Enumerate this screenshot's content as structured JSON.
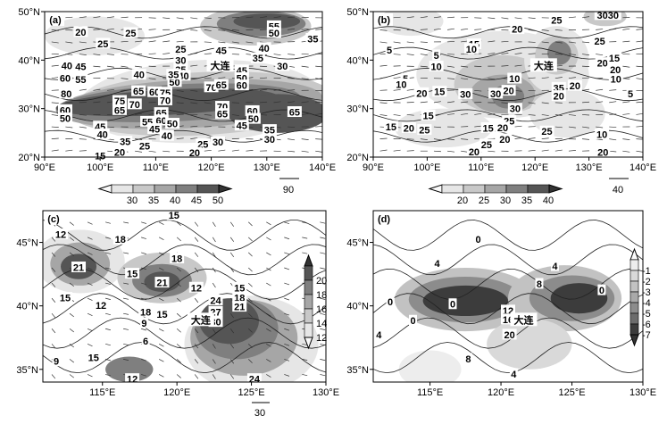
{
  "chart_data": [
    {
      "type": "heatmap",
      "panel_label": "(a)",
      "x_ticks": [
        "90°E",
        "100°E",
        "110°E",
        "120°E",
        "130°E",
        "140°E"
      ],
      "y_ticks": [
        "50°N",
        "40°N",
        "30°N",
        "20°N"
      ],
      "xlim": [
        90,
        140
      ],
      "ylim": [
        20,
        50
      ],
      "city": {
        "label": "大连",
        "lon": 121.6,
        "lat": 38.9
      },
      "shading_levels": [
        "30",
        "35",
        "40",
        "45",
        "50"
      ],
      "shading_colors": [
        "#e6e6e6",
        "#c8c8c8",
        "#a6a6a6",
        "#7f7f7f",
        "#555555"
      ],
      "vector_scale_label": "90",
      "contour_labels": [
        {
          "v": "20",
          "lon": 96.5,
          "lat": 45.7
        },
        {
          "v": "25",
          "lon": 100.5,
          "lat": 43.3
        },
        {
          "v": "25",
          "lon": 105.5,
          "lat": 45.5
        },
        {
          "v": "25",
          "lon": 114.5,
          "lat": 42.2
        },
        {
          "v": "30",
          "lon": 114.5,
          "lat": 39.9
        },
        {
          "v": "35",
          "lon": 114.5,
          "lat": 37.9
        },
        {
          "v": "40",
          "lon": 94.0,
          "lat": 38.8
        },
        {
          "v": "45",
          "lon": 96.5,
          "lat": 38.6
        },
        {
          "v": "60",
          "lon": 93.7,
          "lat": 36.2
        },
        {
          "v": "55",
          "lon": 96.5,
          "lat": 35.9
        },
        {
          "v": "80",
          "lon": 93.9,
          "lat": 33.0
        },
        {
          "v": "60",
          "lon": 93.7,
          "lat": 29.6
        },
        {
          "v": "50",
          "lon": 93.7,
          "lat": 27.9
        },
        {
          "v": "45",
          "lon": 100.0,
          "lat": 26.2
        },
        {
          "v": "40",
          "lon": 100.4,
          "lat": 24.6
        },
        {
          "v": "35",
          "lon": 104.5,
          "lat": 23.1
        },
        {
          "v": "20",
          "lon": 103.5,
          "lat": 20.9
        },
        {
          "v": "15",
          "lon": 100.0,
          "lat": 20.2
        },
        {
          "v": "25",
          "lon": 108.0,
          "lat": 22.2
        },
        {
          "v": "75",
          "lon": 103.5,
          "lat": 31.5
        },
        {
          "v": "65",
          "lon": 103.5,
          "lat": 29.6
        },
        {
          "v": "70",
          "lon": 106.2,
          "lat": 30.8
        },
        {
          "v": "65",
          "lon": 106.9,
          "lat": 33.5
        },
        {
          "v": "60",
          "lon": 109.8,
          "lat": 33.3
        },
        {
          "v": "75",
          "lon": 111.7,
          "lat": 33.2
        },
        {
          "v": "70",
          "lon": 111.7,
          "lat": 31.6
        },
        {
          "v": "65",
          "lon": 111.0,
          "lat": 29.0
        },
        {
          "v": "55",
          "lon": 108.5,
          "lat": 27.2
        },
        {
          "v": "60",
          "lon": 111.0,
          "lat": 27.5
        },
        {
          "v": "50",
          "lon": 113.0,
          "lat": 26.8
        },
        {
          "v": "45",
          "lon": 109.8,
          "lat": 25.7
        },
        {
          "v": "40",
          "lon": 112.0,
          "lat": 24.3
        },
        {
          "v": "25",
          "lon": 118.5,
          "lat": 22.6
        },
        {
          "v": "20",
          "lon": 117.0,
          "lat": 20.8
        },
        {
          "v": "30",
          "lon": 121.2,
          "lat": 23.0
        },
        {
          "v": "40",
          "lon": 115.0,
          "lat": 36.7
        },
        {
          "v": "50",
          "lon": 113.4,
          "lat": 35.4
        },
        {
          "v": "35",
          "lon": 113.2,
          "lat": 36.9
        },
        {
          "v": "70",
          "lon": 120.0,
          "lat": 34.3
        },
        {
          "v": "65",
          "lon": 121.8,
          "lat": 34.8
        },
        {
          "v": "70",
          "lon": 122.0,
          "lat": 30.3
        },
        {
          "v": "65",
          "lon": 122.0,
          "lat": 28.8
        },
        {
          "v": "45",
          "lon": 125.5,
          "lat": 26.4
        },
        {
          "v": "60",
          "lon": 127.4,
          "lat": 29.4
        },
        {
          "v": "50",
          "lon": 127.6,
          "lat": 27.8
        },
        {
          "v": "35",
          "lon": 130.5,
          "lat": 25.5
        },
        {
          "v": "30",
          "lon": 130.5,
          "lat": 23.6
        },
        {
          "v": "65",
          "lon": 135.0,
          "lat": 29.2
        },
        {
          "v": "55",
          "lon": 131.3,
          "lat": 46.9
        },
        {
          "v": "50",
          "lon": 131.3,
          "lat": 45.5
        },
        {
          "v": "45",
          "lon": 121.8,
          "lat": 41.9
        },
        {
          "v": "40",
          "lon": 129.5,
          "lat": 42.4
        },
        {
          "v": "35",
          "lon": 128.4,
          "lat": 40.3
        },
        {
          "v": "30",
          "lon": 132.8,
          "lat": 38.7
        },
        {
          "v": "35",
          "lon": 138.3,
          "lat": 44.3
        },
        {
          "v": "45",
          "lon": 125.5,
          "lat": 37.8
        },
        {
          "v": "50",
          "lon": 125.5,
          "lat": 36.2
        },
        {
          "v": "60",
          "lon": 125.5,
          "lat": 34.7
        },
        {
          "v": "40",
          "lon": 107.0,
          "lat": 36.9
        }
      ]
    },
    {
      "type": "heatmap",
      "panel_label": "(b)",
      "x_ticks": [
        "90°E",
        "100°E",
        "110°E",
        "120°E",
        "130°E",
        "140°E"
      ],
      "y_ticks": [
        "50°N",
        "40°N",
        "30°N",
        "20°N"
      ],
      "xlim": [
        90,
        140
      ],
      "ylim": [
        20,
        50
      ],
      "city": {
        "label": "大连",
        "lon": 121.6,
        "lat": 38.9
      },
      "shading_levels": [
        "20",
        "25",
        "30",
        "35",
        "40"
      ],
      "shading_colors": [
        "#e6e6e6",
        "#c8c8c8",
        "#a6a6a6",
        "#7f7f7f",
        "#555555"
      ],
      "vector_scale_label": "40",
      "contour_labels": [
        {
          "v": "5",
          "lon": 93.0,
          "lat": 42.0
        },
        {
          "v": "5",
          "lon": 96.0,
          "lat": 36.1
        },
        {
          "v": "10",
          "lon": 95.2,
          "lat": 34.9
        },
        {
          "v": "10",
          "lon": 101.7,
          "lat": 38.6
        },
        {
          "v": "5",
          "lon": 101.7,
          "lat": 40.9
        },
        {
          "v": "20",
          "lon": 99.0,
          "lat": 33.1
        },
        {
          "v": "15",
          "lon": 102.3,
          "lat": 33.4
        },
        {
          "v": "15",
          "lon": 100.2,
          "lat": 28.5
        },
        {
          "v": "15",
          "lon": 93.3,
          "lat": 26.2
        },
        {
          "v": "20",
          "lon": 96.6,
          "lat": 25.9
        },
        {
          "v": "25",
          "lon": 99.5,
          "lat": 25.5
        },
        {
          "v": "15",
          "lon": 108.7,
          "lat": 43.2
        },
        {
          "v": "10",
          "lon": 108.2,
          "lat": 42.2
        },
        {
          "v": "20",
          "lon": 116.7,
          "lat": 46.3
        },
        {
          "v": "25",
          "lon": 124.0,
          "lat": 48.2
        },
        {
          "v": "3030",
          "lon": 133.5,
          "lat": 49.2
        },
        {
          "v": "25",
          "lon": 132.0,
          "lat": 43.8
        },
        {
          "v": "20",
          "lon": 132.5,
          "lat": 39.3
        },
        {
          "v": "15",
          "lon": 134.7,
          "lat": 40.3
        },
        {
          "v": "20",
          "lon": 134.9,
          "lat": 37.9
        },
        {
          "v": "10",
          "lon": 135.0,
          "lat": 36.0
        },
        {
          "v": "5",
          "lon": 137.7,
          "lat": 33.0
        },
        {
          "v": "10",
          "lon": 116.2,
          "lat": 36.1
        },
        {
          "v": "20",
          "lon": 115.1,
          "lat": 33.6
        },
        {
          "v": "30",
          "lon": 112.7,
          "lat": 33.0
        },
        {
          "v": "30",
          "lon": 107.1,
          "lat": 32.9
        },
        {
          "v": "35",
          "lon": 124.4,
          "lat": 34.2
        },
        {
          "v": "20",
          "lon": 127.4,
          "lat": 34.6
        },
        {
          "v": "20",
          "lon": 124.4,
          "lat": 32.5
        },
        {
          "v": "30",
          "lon": 116.3,
          "lat": 29.9
        },
        {
          "v": "25",
          "lon": 115.2,
          "lat": 27.4
        },
        {
          "v": "20",
          "lon": 114.0,
          "lat": 26.0
        },
        {
          "v": "15",
          "lon": 111.3,
          "lat": 25.9
        },
        {
          "v": "20",
          "lon": 114.4,
          "lat": 23.6
        },
        {
          "v": "25",
          "lon": 111.0,
          "lat": 22.5
        },
        {
          "v": "20",
          "lon": 108.7,
          "lat": 21.0
        },
        {
          "v": "25",
          "lon": 122.2,
          "lat": 25.2
        },
        {
          "v": "10",
          "lon": 132.4,
          "lat": 24.6
        },
        {
          "v": "20",
          "lon": 132.6,
          "lat": 20.9
        }
      ]
    },
    {
      "type": "heatmap",
      "panel_label": "(c)",
      "x_ticks": [
        "115°E",
        "120°E",
        "125°E",
        "130°E"
      ],
      "y_ticks": [
        "45°N",
        "40°N",
        "35°N"
      ],
      "xlim": [
        111,
        130
      ],
      "ylim": [
        34,
        47.5
      ],
      "city": {
        "label": "大连",
        "lon": 121.6,
        "lat": 38.9
      },
      "shading_levels": [
        "20",
        "18",
        "16",
        "14",
        "12"
      ],
      "shading_colors": [
        "#555555",
        "#7f7f7f",
        "#a6a6a6",
        "#c8c8c8",
        "#e6e6e6"
      ],
      "vector_scale_label": "30",
      "contour_labels": [
        {
          "v": "12",
          "lon": 112.2,
          "lat": 45.6
        },
        {
          "v": "15",
          "lon": 119.8,
          "lat": 47.1
        },
        {
          "v": "18",
          "lon": 116.2,
          "lat": 45.2
        },
        {
          "v": "21",
          "lon": 113.4,
          "lat": 43.0
        },
        {
          "v": "15",
          "lon": 117.0,
          "lat": 42.5
        },
        {
          "v": "18",
          "lon": 120.0,
          "lat": 43.7
        },
        {
          "v": "21",
          "lon": 119.0,
          "lat": 41.8
        },
        {
          "v": "15",
          "lon": 112.5,
          "lat": 40.6
        },
        {
          "v": "12",
          "lon": 114.9,
          "lat": 40.0
        },
        {
          "v": "18",
          "lon": 117.9,
          "lat": 39.5
        },
        {
          "v": "15",
          "lon": 119.0,
          "lat": 39.3
        },
        {
          "v": "9",
          "lon": 117.8,
          "lat": 38.6
        },
        {
          "v": "6",
          "lon": 117.9,
          "lat": 37.2
        },
        {
          "v": "9",
          "lon": 111.9,
          "lat": 35.6
        },
        {
          "v": "15",
          "lon": 114.4,
          "lat": 35.9
        },
        {
          "v": "12",
          "lon": 117.0,
          "lat": 34.2
        },
        {
          "v": "12",
          "lon": 121.3,
          "lat": 41.4
        },
        {
          "v": "24",
          "lon": 122.6,
          "lat": 40.4
        },
        {
          "v": "15",
          "lon": 124.2,
          "lat": 41.4
        },
        {
          "v": "18",
          "lon": 124.2,
          "lat": 40.6
        },
        {
          "v": "21",
          "lon": 124.2,
          "lat": 39.9
        },
        {
          "v": "27",
          "lon": 122.6,
          "lat": 39.5
        },
        {
          "v": "30",
          "lon": 122.6,
          "lat": 38.7
        },
        {
          "v": "24",
          "lon": 125.2,
          "lat": 34.2
        }
      ]
    },
    {
      "type": "heatmap",
      "panel_label": "(d)",
      "x_ticks": [
        "115°E",
        "120°E",
        "125°E",
        "130°E"
      ],
      "y_ticks": [
        "45°N",
        "40°N",
        "35°N"
      ],
      "xlim": [
        111,
        130
      ],
      "ylim": [
        34,
        47.5
      ],
      "city": {
        "label": "大连",
        "lon": 121.6,
        "lat": 38.9
      },
      "shading_levels": [
        "-1",
        "-2",
        "-3",
        "-4",
        "-5",
        "-6",
        "-7"
      ],
      "shading_colors": [
        "#ededed",
        "#d9d9d9",
        "#c2c2c2",
        "#a9a9a9",
        "#8c8c8c",
        "#6c6c6c",
        "#3c3c3c"
      ],
      "contour_labels": [
        {
          "v": "0",
          "lon": 118.4,
          "lat": 45.2
        },
        {
          "v": "4",
          "lon": 115.5,
          "lat": 43.3
        },
        {
          "v": "4",
          "lon": 123.8,
          "lat": 43.1
        },
        {
          "v": "8",
          "lon": 122.7,
          "lat": 41.7
        },
        {
          "v": "0",
          "lon": 127.1,
          "lat": 41.2
        },
        {
          "v": "0",
          "lon": 129.3,
          "lat": 41.2
        },
        {
          "v": "0",
          "lon": 112.2,
          "lat": 40.3
        },
        {
          "v": "0",
          "lon": 116.6,
          "lat": 40.1
        },
        {
          "v": "0",
          "lon": 113.8,
          "lat": 38.8
        },
        {
          "v": "4",
          "lon": 111.4,
          "lat": 37.7
        },
        {
          "v": "12",
          "lon": 120.5,
          "lat": 39.6
        },
        {
          "v": "16",
          "lon": 120.5,
          "lat": 38.9
        },
        {
          "v": "20",
          "lon": 120.6,
          "lat": 37.7
        },
        {
          "v": "8",
          "lon": 117.7,
          "lat": 35.8
        },
        {
          "v": "4",
          "lon": 120.9,
          "lat": 34.6
        }
      ]
    }
  ]
}
